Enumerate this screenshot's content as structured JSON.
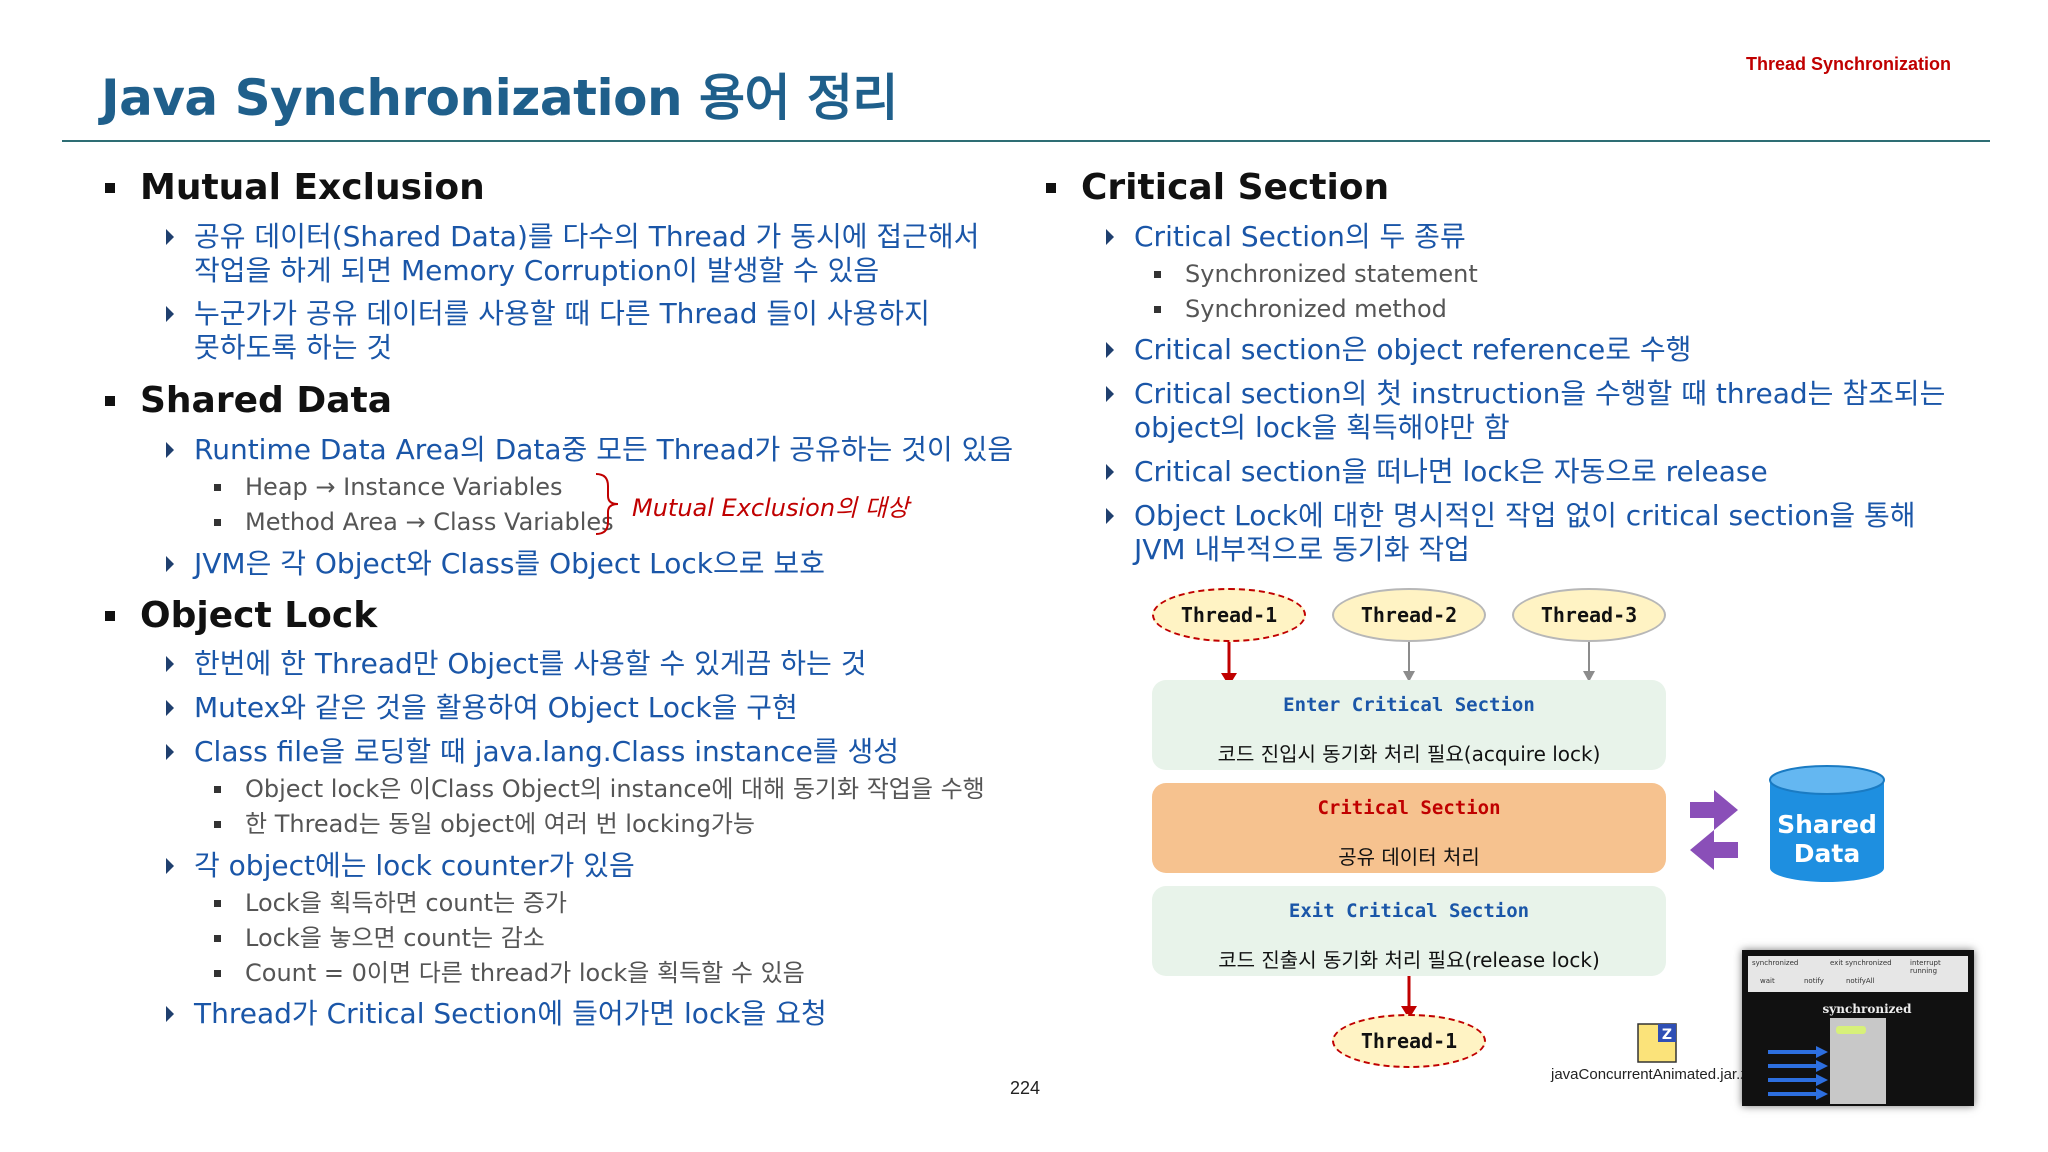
{
  "header": {
    "title": "Java Synchronization 용어 정리",
    "tag": "Thread Synchronization"
  },
  "left": {
    "mutual_exclusion": {
      "heading": "Mutual Exclusion",
      "items": [
        [
          "공유 데이터(Shared Data)를 다수의 Thread 가 동시에 접근해서",
          "작업을 하게 되면 Memory Corruption이 발생할 수 있음"
        ],
        [
          "누군가가 공유 데이터를 사용할 때 다른 Thread 들이 사용하지",
          "못하도록 하는 것"
        ]
      ]
    },
    "shared_data": {
      "heading": "Shared Data",
      "item1": "Runtime Data Area의 Data중 모든 Thread가 공유하는 것이 있음",
      "sub1": "Heap → Instance Variables",
      "sub2": "Method Area → Class Variables",
      "note": "Mutual Exclusion의 대상",
      "item2": "JVM은 각 Object와 Class를 Object Lock으로 보호"
    },
    "object_lock": {
      "heading": "Object Lock",
      "item1": "한번에 한 Thread만 Object를 사용할 수 있게끔 하는 것",
      "item2": "Mutex와 같은 것을 활용하여 Object Lock을 구현",
      "item3": "Class file을 로딩할 때 java.lang.Class instance를 생성",
      "sub3a": "Object lock은 이Class Object의 instance에 대해 동기화 작업을 수행",
      "sub3b": "한 Thread는 동일 object에 여러 번 locking가능",
      "item4": "각 object에는 lock counter가 있음",
      "sub4a": "Lock을 획득하면 count는 증가",
      "sub4b": "Lock을 놓으면 count는 감소",
      "sub4c": "Count = 0이면 다른 thread가 lock을 획득할 수 있음",
      "item5": "Thread가 Critical Section에 들어가면 lock을 요청"
    }
  },
  "right": {
    "heading": "Critical Section",
    "item1": "Critical Section의 두 종류",
    "sub1a": "Synchronized statement",
    "sub1b": "Synchronized method",
    "item2": "Critical section은 object reference로 수행",
    "item3": [
      "Critical section의 첫 instruction을 수행할 때 thread는 참조되는",
      "object의 lock을 획득해야만 함"
    ],
    "item4": "Critical section을 떠나면 lock은 자동으로 release",
    "item5": [
      "Object Lock에 대한 명시적인 작업 없이 critical section을 통해",
      "JVM 내부적으로 동기화 작업"
    ]
  },
  "diagram": {
    "threads": [
      "Thread-1",
      "Thread-2",
      "Thread-3"
    ],
    "enter_head": "Enter Critical Section",
    "enter_text": "코드 진입시 동기화 처리 필요(acquire lock)",
    "cs_head": "Critical Section",
    "cs_text": "공유 데이터 처리",
    "exit_head": "Exit Critical Section",
    "exit_text": "코드 진출시 동기화 처리 필요(release lock)",
    "exit_thread": "Thread-1",
    "shared_line1": "Shared",
    "shared_line2": "Data",
    "colors": {
      "enter_bg": "#e8f3ea",
      "cs_bg": "#f6c28f",
      "exit_bg": "#e8f3ea",
      "arrow": "#8a4fb8",
      "cylinder": "#1e8fe0",
      "red": "#c00000"
    }
  },
  "footer": {
    "page_number": "224",
    "jar_label": "javaConcurrentAnimated.jar.z",
    "thumb_menu": [
      "synchronized",
      "exit synchronized",
      "interrupt running",
      "wait",
      "notify",
      "notifyAll"
    ],
    "thumb_title": "synchronized"
  }
}
